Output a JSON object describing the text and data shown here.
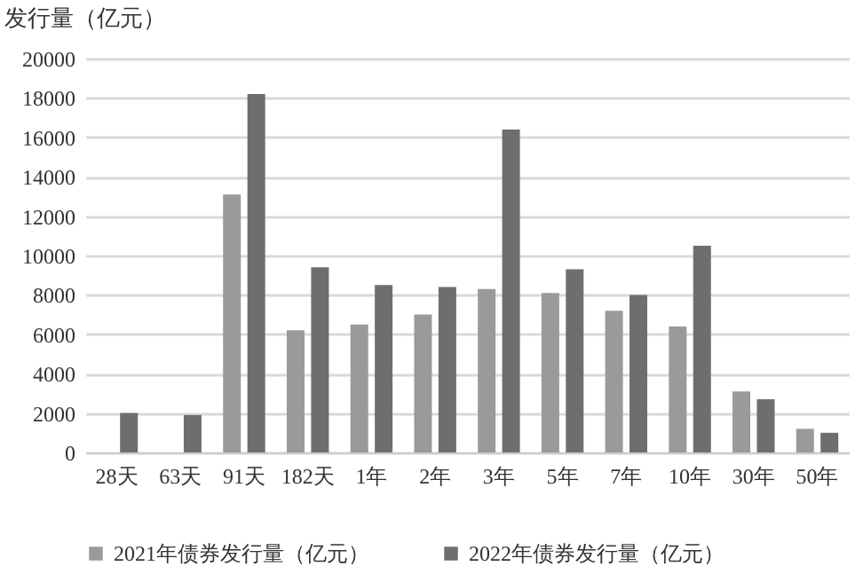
{
  "chart_data": {
    "type": "bar",
    "ylabel": "发行量（亿元）",
    "categories": [
      "28天",
      "63天",
      "91天",
      "182天",
      "1年",
      "2年",
      "3年",
      "5年",
      "7年",
      "10年",
      "30年",
      "50年"
    ],
    "series": [
      {
        "name": "2021年债券发行量（亿元）",
        "color": "#9a9a9a",
        "values": [
          null,
          null,
          13100,
          6200,
          6500,
          7000,
          8300,
          8100,
          7200,
          6400,
          3100,
          1200
        ]
      },
      {
        "name": "2022年债券发行量（亿元）",
        "color": "#6e6e6e",
        "values": [
          2000,
          1900,
          18200,
          9400,
          8500,
          8400,
          16400,
          9300,
          8000,
          10500,
          2700,
          1000
        ]
      }
    ],
    "ylim": [
      0,
      20000
    ],
    "yticks": [
      0,
      2000,
      4000,
      6000,
      8000,
      10000,
      12000,
      14000,
      16000,
      18000,
      20000
    ],
    "grid": "y",
    "legend": "bottom"
  }
}
